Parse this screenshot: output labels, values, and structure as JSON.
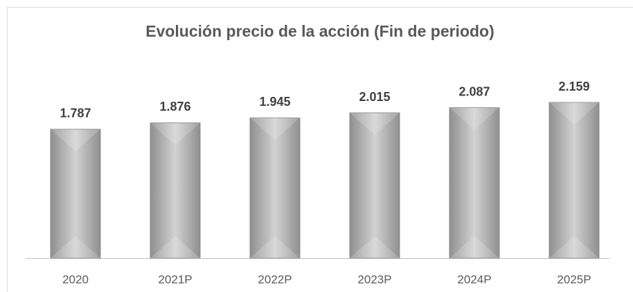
{
  "chart_data": {
    "type": "bar",
    "title": "Evolución precio de la acción (Fin de periodo)",
    "categories": [
      "2020",
      "2021P",
      "2022P",
      "2023P",
      "2024P",
      "2025P"
    ],
    "values": [
      1787,
      1876,
      1945,
      2015,
      2087,
      2159
    ],
    "value_labels": [
      "1.787",
      "1.876",
      "1.945",
      "2.015",
      "2.087",
      "2.159"
    ],
    "color": "#b4b4b4"
  }
}
